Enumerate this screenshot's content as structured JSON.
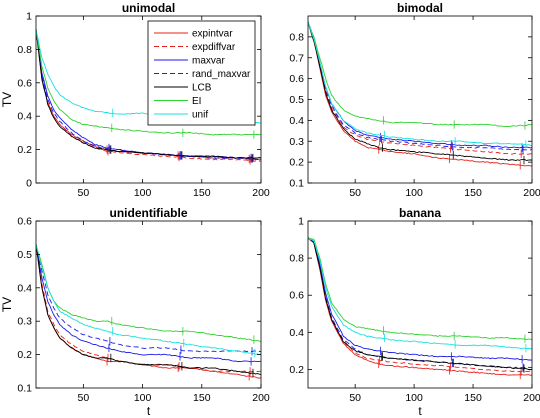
{
  "figure": {
    "legend": {
      "entries": [
        {
          "label": "expintvar",
          "color": "#e8201a",
          "dash": "solid"
        },
        {
          "label": "expdiffvar",
          "color": "#e8201a",
          "dash": "dashed"
        },
        {
          "label": "maxvar",
          "color": "#1a1ae8",
          "dash": "solid"
        },
        {
          "label": "rand_maxvar",
          "color": "#1a1ae8",
          "dash": "dashed"
        },
        {
          "label": "LCB",
          "color": "#000000",
          "dash": "solid"
        },
        {
          "label": "EI",
          "color": "#2ed12e",
          "dash": "solid"
        },
        {
          "label": "unif",
          "color": "#18e0e0",
          "dash": "solid"
        }
      ],
      "placement": "top-right of first panel"
    }
  },
  "chart_data": [
    {
      "type": "line",
      "title": "unimodal",
      "xlabel": "",
      "ylabel": "TV",
      "xlim": [
        10,
        200
      ],
      "ylim": [
        0,
        1
      ],
      "xticks": [
        50,
        100,
        150,
        200
      ],
      "yticks": [
        0,
        0.2,
        0.4,
        0.6,
        0.8,
        1
      ],
      "ytick_labels": [
        "0",
        "0.2",
        "0.4",
        "0.6",
        "0.8",
        "1"
      ],
      "x": [
        10,
        15,
        20,
        25,
        30,
        40,
        50,
        60,
        70,
        80,
        100,
        120,
        140,
        160,
        180,
        200
      ],
      "series": [
        {
          "name": "expintvar",
          "values": [
            0.92,
            0.63,
            0.48,
            0.4,
            0.35,
            0.29,
            0.25,
            0.22,
            0.2,
            0.19,
            0.18,
            0.17,
            0.16,
            0.15,
            0.15,
            0.14
          ]
        },
        {
          "name": "expdiffvar",
          "values": [
            0.92,
            0.63,
            0.48,
            0.4,
            0.35,
            0.28,
            0.24,
            0.21,
            0.19,
            0.18,
            0.17,
            0.16,
            0.15,
            0.14,
            0.14,
            0.13
          ]
        },
        {
          "name": "maxvar",
          "values": [
            0.92,
            0.66,
            0.52,
            0.44,
            0.39,
            0.32,
            0.27,
            0.23,
            0.21,
            0.2,
            0.18,
            0.17,
            0.16,
            0.16,
            0.15,
            0.15
          ]
        },
        {
          "name": "rand_maxvar",
          "values": [
            0.92,
            0.64,
            0.5,
            0.42,
            0.37,
            0.3,
            0.25,
            0.22,
            0.2,
            0.19,
            0.18,
            0.17,
            0.16,
            0.15,
            0.15,
            0.14
          ]
        },
        {
          "name": "LCB",
          "values": [
            0.92,
            0.62,
            0.47,
            0.39,
            0.34,
            0.28,
            0.24,
            0.21,
            0.2,
            0.19,
            0.18,
            0.17,
            0.16,
            0.16,
            0.15,
            0.15
          ]
        },
        {
          "name": "EI",
          "values": [
            0.92,
            0.7,
            0.57,
            0.49,
            0.44,
            0.38,
            0.35,
            0.34,
            0.33,
            0.32,
            0.31,
            0.3,
            0.3,
            0.29,
            0.29,
            0.29
          ]
        },
        {
          "name": "unif",
          "values": [
            0.92,
            0.75,
            0.65,
            0.58,
            0.53,
            0.48,
            0.45,
            0.43,
            0.42,
            0.41,
            0.42,
            0.4,
            0.39,
            0.38,
            0.37,
            0.36
          ]
        }
      ]
    },
    {
      "type": "line",
      "title": "bimodal",
      "xlabel": "",
      "ylabel": "",
      "xlim": [
        10,
        200
      ],
      "ylim": [
        0.1,
        0.9
      ],
      "xticks": [
        50,
        100,
        150,
        200
      ],
      "yticks": [
        0.1,
        0.2,
        0.3,
        0.4,
        0.5,
        0.6,
        0.7,
        0.8
      ],
      "ytick_labels": [
        "0.1",
        "0.2",
        "0.3",
        "0.4",
        "0.5",
        "0.6",
        "0.7",
        "0.8"
      ],
      "x": [
        10,
        15,
        20,
        25,
        30,
        40,
        50,
        60,
        70,
        80,
        100,
        120,
        140,
        160,
        180,
        200
      ],
      "series": [
        {
          "name": "expintvar",
          "values": [
            0.87,
            0.78,
            0.65,
            0.52,
            0.44,
            0.35,
            0.3,
            0.27,
            0.26,
            0.25,
            0.24,
            0.22,
            0.21,
            0.2,
            0.19,
            0.18
          ]
        },
        {
          "name": "expdiffvar",
          "values": [
            0.87,
            0.78,
            0.66,
            0.54,
            0.46,
            0.37,
            0.33,
            0.31,
            0.3,
            0.29,
            0.28,
            0.27,
            0.26,
            0.25,
            0.24,
            0.24
          ]
        },
        {
          "name": "maxvar",
          "values": [
            0.87,
            0.79,
            0.68,
            0.56,
            0.48,
            0.4,
            0.35,
            0.33,
            0.32,
            0.31,
            0.3,
            0.29,
            0.28,
            0.28,
            0.27,
            0.27
          ]
        },
        {
          "name": "rand_maxvar",
          "values": [
            0.87,
            0.78,
            0.67,
            0.55,
            0.47,
            0.38,
            0.34,
            0.32,
            0.31,
            0.3,
            0.29,
            0.28,
            0.27,
            0.27,
            0.26,
            0.26
          ]
        },
        {
          "name": "LCB",
          "values": [
            0.87,
            0.78,
            0.66,
            0.53,
            0.45,
            0.36,
            0.31,
            0.29,
            0.27,
            0.26,
            0.25,
            0.24,
            0.23,
            0.22,
            0.21,
            0.21
          ]
        },
        {
          "name": "EI",
          "values": [
            0.87,
            0.8,
            0.7,
            0.6,
            0.52,
            0.45,
            0.42,
            0.41,
            0.4,
            0.39,
            0.39,
            0.38,
            0.38,
            0.38,
            0.37,
            0.38
          ]
        },
        {
          "name": "unif",
          "values": [
            0.87,
            0.79,
            0.68,
            0.56,
            0.48,
            0.4,
            0.36,
            0.34,
            0.33,
            0.32,
            0.31,
            0.3,
            0.3,
            0.29,
            0.29,
            0.28
          ]
        }
      ]
    },
    {
      "type": "line",
      "title": "unidentifiable",
      "xlabel": "t",
      "ylabel": "TV",
      "xlim": [
        10,
        200
      ],
      "ylim": [
        0.1,
        0.6
      ],
      "xticks": [
        50,
        100,
        150,
        200
      ],
      "yticks": [
        0.1,
        0.2,
        0.3,
        0.4,
        0.5,
        0.6
      ],
      "ytick_labels": [
        "0.1",
        "0.2",
        "0.3",
        "0.4",
        "0.5",
        "0.6"
      ],
      "x": [
        10,
        15,
        20,
        25,
        30,
        40,
        50,
        60,
        70,
        80,
        100,
        120,
        140,
        160,
        180,
        200
      ],
      "series": [
        {
          "name": "expintvar",
          "values": [
            0.53,
            0.4,
            0.32,
            0.28,
            0.25,
            0.22,
            0.2,
            0.19,
            0.18,
            0.18,
            0.17,
            0.16,
            0.16,
            0.15,
            0.14,
            0.13
          ]
        },
        {
          "name": "expdiffvar",
          "values": [
            0.53,
            0.41,
            0.33,
            0.29,
            0.26,
            0.23,
            0.21,
            0.2,
            0.19,
            0.18,
            0.17,
            0.17,
            0.16,
            0.15,
            0.15,
            0.15
          ]
        },
        {
          "name": "maxvar",
          "values": [
            0.53,
            0.43,
            0.36,
            0.32,
            0.29,
            0.26,
            0.24,
            0.23,
            0.22,
            0.21,
            0.2,
            0.2,
            0.19,
            0.19,
            0.18,
            0.18
          ]
        },
        {
          "name": "rand_maxvar",
          "values": [
            0.53,
            0.45,
            0.38,
            0.34,
            0.31,
            0.28,
            0.26,
            0.25,
            0.24,
            0.23,
            0.22,
            0.22,
            0.21,
            0.21,
            0.21,
            0.21
          ]
        },
        {
          "name": "LCB",
          "values": [
            0.53,
            0.4,
            0.32,
            0.28,
            0.25,
            0.22,
            0.2,
            0.19,
            0.19,
            0.18,
            0.17,
            0.17,
            0.16,
            0.16,
            0.15,
            0.14
          ]
        },
        {
          "name": "EI",
          "values": [
            0.53,
            0.47,
            0.4,
            0.36,
            0.34,
            0.32,
            0.31,
            0.3,
            0.3,
            0.29,
            0.28,
            0.27,
            0.27,
            0.26,
            0.25,
            0.24
          ]
        },
        {
          "name": "unif",
          "values": [
            0.53,
            0.46,
            0.4,
            0.36,
            0.33,
            0.31,
            0.29,
            0.28,
            0.27,
            0.26,
            0.25,
            0.24,
            0.23,
            0.22,
            0.21,
            0.2
          ]
        }
      ]
    },
    {
      "type": "line",
      "title": "banana",
      "xlabel": "t",
      "ylabel": "",
      "xlim": [
        10,
        200
      ],
      "ylim": [
        0.1,
        1
      ],
      "xticks": [
        50,
        100,
        150,
        200
      ],
      "yticks": [
        0.2,
        0.4,
        0.6,
        0.8,
        1
      ],
      "ytick_labels": [
        "0.2",
        "0.4",
        "0.6",
        "0.8",
        "1"
      ],
      "x": [
        10,
        15,
        20,
        25,
        30,
        40,
        50,
        60,
        70,
        80,
        100,
        120,
        140,
        160,
        180,
        200
      ],
      "series": [
        {
          "name": "expintvar",
          "values": [
            0.91,
            0.88,
            0.74,
            0.57,
            0.46,
            0.34,
            0.28,
            0.25,
            0.23,
            0.22,
            0.21,
            0.2,
            0.19,
            0.18,
            0.17,
            0.17
          ]
        },
        {
          "name": "expdiffvar",
          "values": [
            0.91,
            0.88,
            0.75,
            0.58,
            0.47,
            0.35,
            0.29,
            0.26,
            0.25,
            0.24,
            0.23,
            0.22,
            0.21,
            0.2,
            0.19,
            0.19
          ]
        },
        {
          "name": "maxvar",
          "values": [
            0.91,
            0.89,
            0.77,
            0.61,
            0.5,
            0.38,
            0.33,
            0.31,
            0.3,
            0.29,
            0.28,
            0.27,
            0.27,
            0.26,
            0.26,
            0.25
          ]
        },
        {
          "name": "rand_maxvar",
          "values": [
            0.91,
            0.88,
            0.76,
            0.59,
            0.48,
            0.36,
            0.31,
            0.28,
            0.27,
            0.26,
            0.25,
            0.24,
            0.23,
            0.22,
            0.21,
            0.21
          ]
        },
        {
          "name": "LCB",
          "values": [
            0.91,
            0.88,
            0.75,
            0.58,
            0.47,
            0.35,
            0.3,
            0.28,
            0.27,
            0.26,
            0.25,
            0.24,
            0.23,
            0.22,
            0.21,
            0.2
          ]
        },
        {
          "name": "EI",
          "values": [
            0.91,
            0.9,
            0.8,
            0.66,
            0.56,
            0.47,
            0.43,
            0.42,
            0.41,
            0.4,
            0.39,
            0.38,
            0.38,
            0.37,
            0.37,
            0.36
          ]
        },
        {
          "name": "unif",
          "values": [
            0.91,
            0.89,
            0.79,
            0.64,
            0.54,
            0.44,
            0.4,
            0.38,
            0.37,
            0.36,
            0.35,
            0.34,
            0.33,
            0.33,
            0.32,
            0.31
          ]
        }
      ]
    }
  ]
}
